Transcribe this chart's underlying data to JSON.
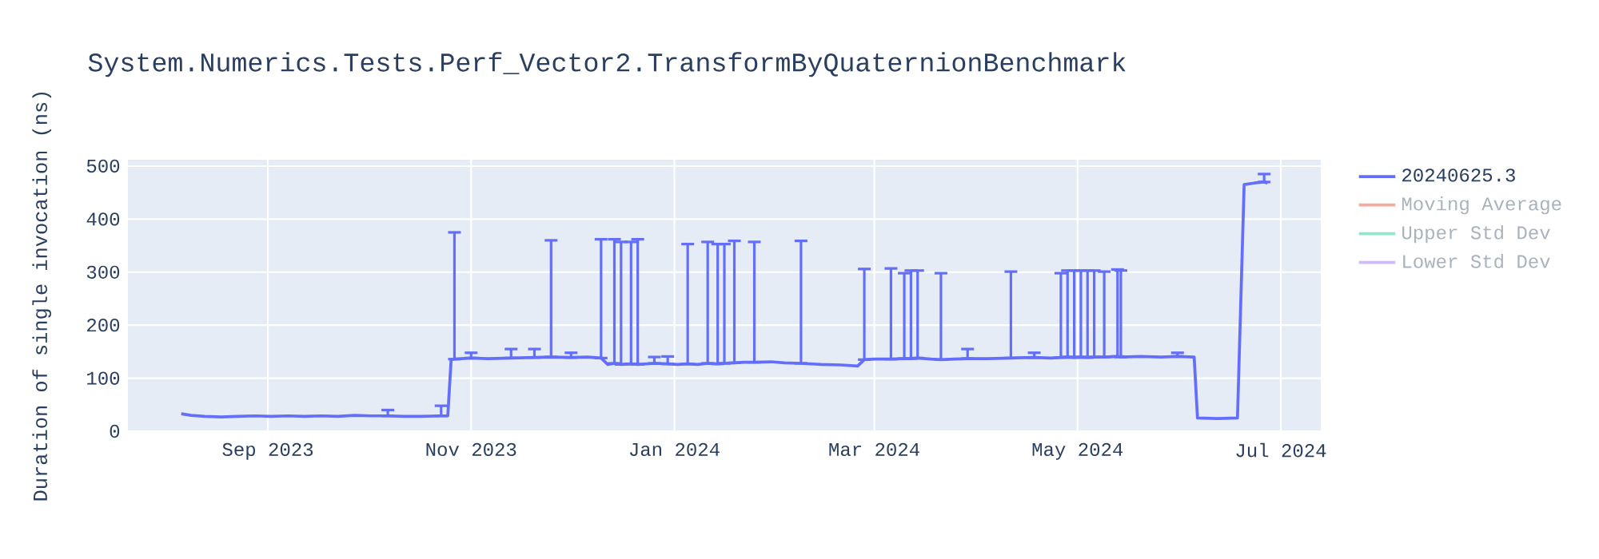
{
  "chart_data": {
    "type": "line",
    "title": "System.Numerics.Tests.Perf_Vector2.TransformByQuaternionBenchmark",
    "ylabel": "Duration of single invocation (ns)",
    "xlim": [
      "2023-07-21",
      "2024-07-13"
    ],
    "ylim": [
      0,
      512
    ],
    "xticks": [
      {
        "value": "2023-09-01",
        "label": "Sep 2023"
      },
      {
        "value": "2023-11-01",
        "label": "Nov 2023"
      },
      {
        "value": "2024-01-01",
        "label": "Jan 2024"
      },
      {
        "value": "2024-03-01",
        "label": "Mar 2024"
      },
      {
        "value": "2024-05-01",
        "label": "May 2024"
      },
      {
        "value": "2024-07-01",
        "label": "Jul 2024"
      }
    ],
    "yticks": [
      0,
      100,
      200,
      300,
      400,
      500
    ],
    "grid": true,
    "legend": "top right",
    "marker": "none",
    "series": [
      {
        "name": "20240625.3",
        "color": "#636efa",
        "x": [
          "2023-08-06",
          "2023-08-09",
          "2023-08-13",
          "2023-08-18",
          "2023-08-23",
          "2023-08-28",
          "2023-09-02",
          "2023-09-07",
          "2023-09-12",
          "2023-09-17",
          "2023-09-22",
          "2023-09-27",
          "2023-10-02",
          "2023-10-07",
          "2023-10-12",
          "2023-10-17",
          "2023-10-23",
          "2023-10-25",
          "2023-10-26",
          "2023-10-27",
          "2023-11-01",
          "2023-11-06",
          "2023-11-13",
          "2023-11-20",
          "2023-11-25",
          "2023-12-01",
          "2023-12-06",
          "2023-12-10",
          "2023-12-12",
          "2023-12-14",
          "2023-12-16",
          "2023-12-19",
          "2023-12-21",
          "2023-12-26",
          "2023-12-30",
          "2024-01-02",
          "2024-01-05",
          "2024-01-08",
          "2024-01-11",
          "2024-01-14",
          "2024-01-16",
          "2024-01-19",
          "2024-01-22",
          "2024-01-25",
          "2024-01-30",
          "2024-02-03",
          "2024-02-08",
          "2024-02-14",
          "2024-02-20",
          "2024-02-25",
          "2024-02-27",
          "2024-03-01",
          "2024-03-06",
          "2024-03-10",
          "2024-03-12",
          "2024-03-14",
          "2024-03-18",
          "2024-03-21",
          "2024-03-25",
          "2024-03-29",
          "2024-04-04",
          "2024-04-11",
          "2024-04-18",
          "2024-04-23",
          "2024-04-26",
          "2024-04-28",
          "2024-04-30",
          "2024-05-02",
          "2024-05-04",
          "2024-05-06",
          "2024-05-09",
          "2024-05-13",
          "2024-05-14",
          "2024-05-20",
          "2024-05-26",
          "2024-05-31",
          "2024-06-05",
          "2024-06-06",
          "2024-06-12",
          "2024-06-18",
          "2024-06-20",
          "2024-06-23",
          "2024-06-26",
          "2024-06-27"
        ],
        "values": [
          33,
          30,
          28,
          27,
          28,
          29,
          28,
          29,
          28,
          29,
          28,
          30,
          29,
          29,
          28,
          28,
          29,
          29,
          135,
          136,
          138,
          137,
          138,
          139,
          140,
          139,
          140,
          138,
          126,
          128,
          126,
          127,
          126,
          128,
          127,
          126,
          127,
          126,
          128,
          127,
          128,
          129,
          130,
          130,
          131,
          129,
          128,
          126,
          125,
          123,
          135,
          136,
          136,
          137,
          137,
          138,
          136,
          135,
          136,
          137,
          137,
          138,
          139,
          138,
          139,
          140,
          139,
          140,
          139,
          140,
          140,
          141,
          140,
          141,
          140,
          141,
          140,
          25,
          24,
          25,
          465,
          468,
          470,
          468
        ],
        "errors": [
          null,
          null,
          null,
          null,
          null,
          null,
          null,
          null,
          null,
          null,
          null,
          null,
          null,
          [
            29,
            40
          ],
          null,
          null,
          [
            29,
            48
          ],
          null,
          null,
          [
            136,
            375
          ],
          [
            138,
            148
          ],
          null,
          [
            138,
            155
          ],
          [
            139,
            155
          ],
          [
            140,
            360
          ],
          [
            139,
            148
          ],
          null,
          [
            138,
            362
          ],
          null,
          [
            128,
            362
          ],
          [
            126,
            357
          ],
          [
            127,
            357
          ],
          [
            126,
            362
          ],
          [
            128,
            140
          ],
          [
            127,
            141
          ],
          null,
          [
            127,
            353
          ],
          null,
          [
            128,
            357
          ],
          [
            127,
            353
          ],
          [
            128,
            353
          ],
          [
            129,
            359
          ],
          null,
          [
            130,
            357
          ],
          null,
          null,
          [
            128,
            359
          ],
          null,
          null,
          null,
          [
            135,
            306
          ],
          null,
          [
            136,
            307
          ],
          [
            137,
            298
          ],
          [
            137,
            303
          ],
          [
            138,
            303
          ],
          null,
          [
            135,
            298
          ],
          null,
          [
            137,
            155
          ],
          null,
          [
            138,
            301
          ],
          [
            139,
            148
          ],
          null,
          [
            139,
            298
          ],
          [
            140,
            303
          ],
          [
            139,
            303
          ],
          [
            140,
            303
          ],
          [
            139,
            303
          ],
          [
            140,
            303
          ],
          [
            140,
            301
          ],
          [
            141,
            305
          ],
          [
            140,
            303
          ],
          null,
          null,
          [
            141,
            148
          ],
          null,
          null,
          null,
          null,
          null,
          null,
          [
            470,
            485
          ],
          null
        ]
      },
      {
        "name": "Moving Average",
        "color": "#f5aa9d"
      },
      {
        "name": "Upper Std Dev",
        "color": "#8ee8cc"
      },
      {
        "name": "Lower Std Dev",
        "color": "#d2b8fe"
      }
    ]
  }
}
